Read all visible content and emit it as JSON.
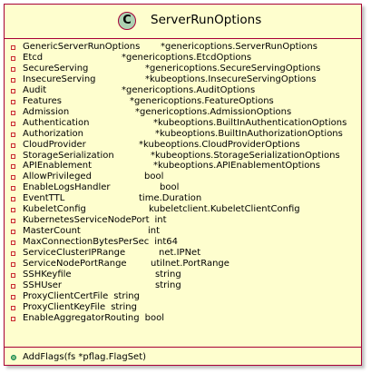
{
  "class": {
    "stereotype_icon": "C",
    "name": "ServerRunOptions",
    "fields": [
      {
        "name": "GenericServerRunOptions",
        "type": "*genericoptions.ServerRunOptions"
      },
      {
        "name": "Etcd",
        "type": "*genericoptions.EtcdOptions"
      },
      {
        "name": "SecureServing",
        "type": "*genericoptions.SecureServingOptions"
      },
      {
        "name": "InsecureServing",
        "type": "*kubeoptions.InsecureServingOptions"
      },
      {
        "name": "Audit",
        "type": "*genericoptions.AuditOptions"
      },
      {
        "name": "Features",
        "type": "*genericoptions.FeatureOptions"
      },
      {
        "name": "Admission",
        "type": "*genericoptions.AdmissionOptions"
      },
      {
        "name": "Authentication",
        "type": "*kubeoptions.BuiltInAuthenticationOptions"
      },
      {
        "name": "Authorization",
        "type": "*kubeoptions.BuiltInAuthorizationOptions"
      },
      {
        "name": "CloudProvider",
        "type": "*kubeoptions.CloudProviderOptions"
      },
      {
        "name": "StorageSerialization",
        "type": "*kubeoptions.StorageSerializationOptions"
      },
      {
        "name": "APIEnablement",
        "type": "*kubeoptions.APIEnablementOptions"
      },
      {
        "name": "AllowPrivileged",
        "type": "bool"
      },
      {
        "name": "EnableLogsHandler",
        "type": "bool"
      },
      {
        "name": "EventTTL",
        "type": "time.Duration"
      },
      {
        "name": "KubeletConfig",
        "type": "kubeletclient.KubeletClientConfig"
      },
      {
        "name": "KubernetesServiceNodePort",
        "type": "int"
      },
      {
        "name": "MasterCount",
        "type": "int"
      },
      {
        "name": "MaxConnectionBytesPerSec",
        "type": "int64"
      },
      {
        "name": "ServiceClusterIPRange",
        "type": "net.IPNet"
      },
      {
        "name": "ServiceNodePortRange",
        "type": "utilnet.PortRange"
      },
      {
        "name": "SSHKeyfile",
        "type": "string"
      },
      {
        "name": "SSHUser",
        "type": "string"
      },
      {
        "name": "ProxyClientCertFile",
        "type": "string"
      },
      {
        "name": "ProxyClientKeyFile",
        "type": "string"
      },
      {
        "name": "EnableAggregatorRouting",
        "type": "bool"
      }
    ],
    "methods": [
      {
        "signature": "AddFlags(fs *pflag.FlagSet)"
      }
    ]
  },
  "colors": {
    "class_background": "#FEFECE",
    "border": "#A80036",
    "class_icon": "#ADD1B2",
    "private_field_marker": "#C82930",
    "public_method_marker": "#84BE84"
  }
}
